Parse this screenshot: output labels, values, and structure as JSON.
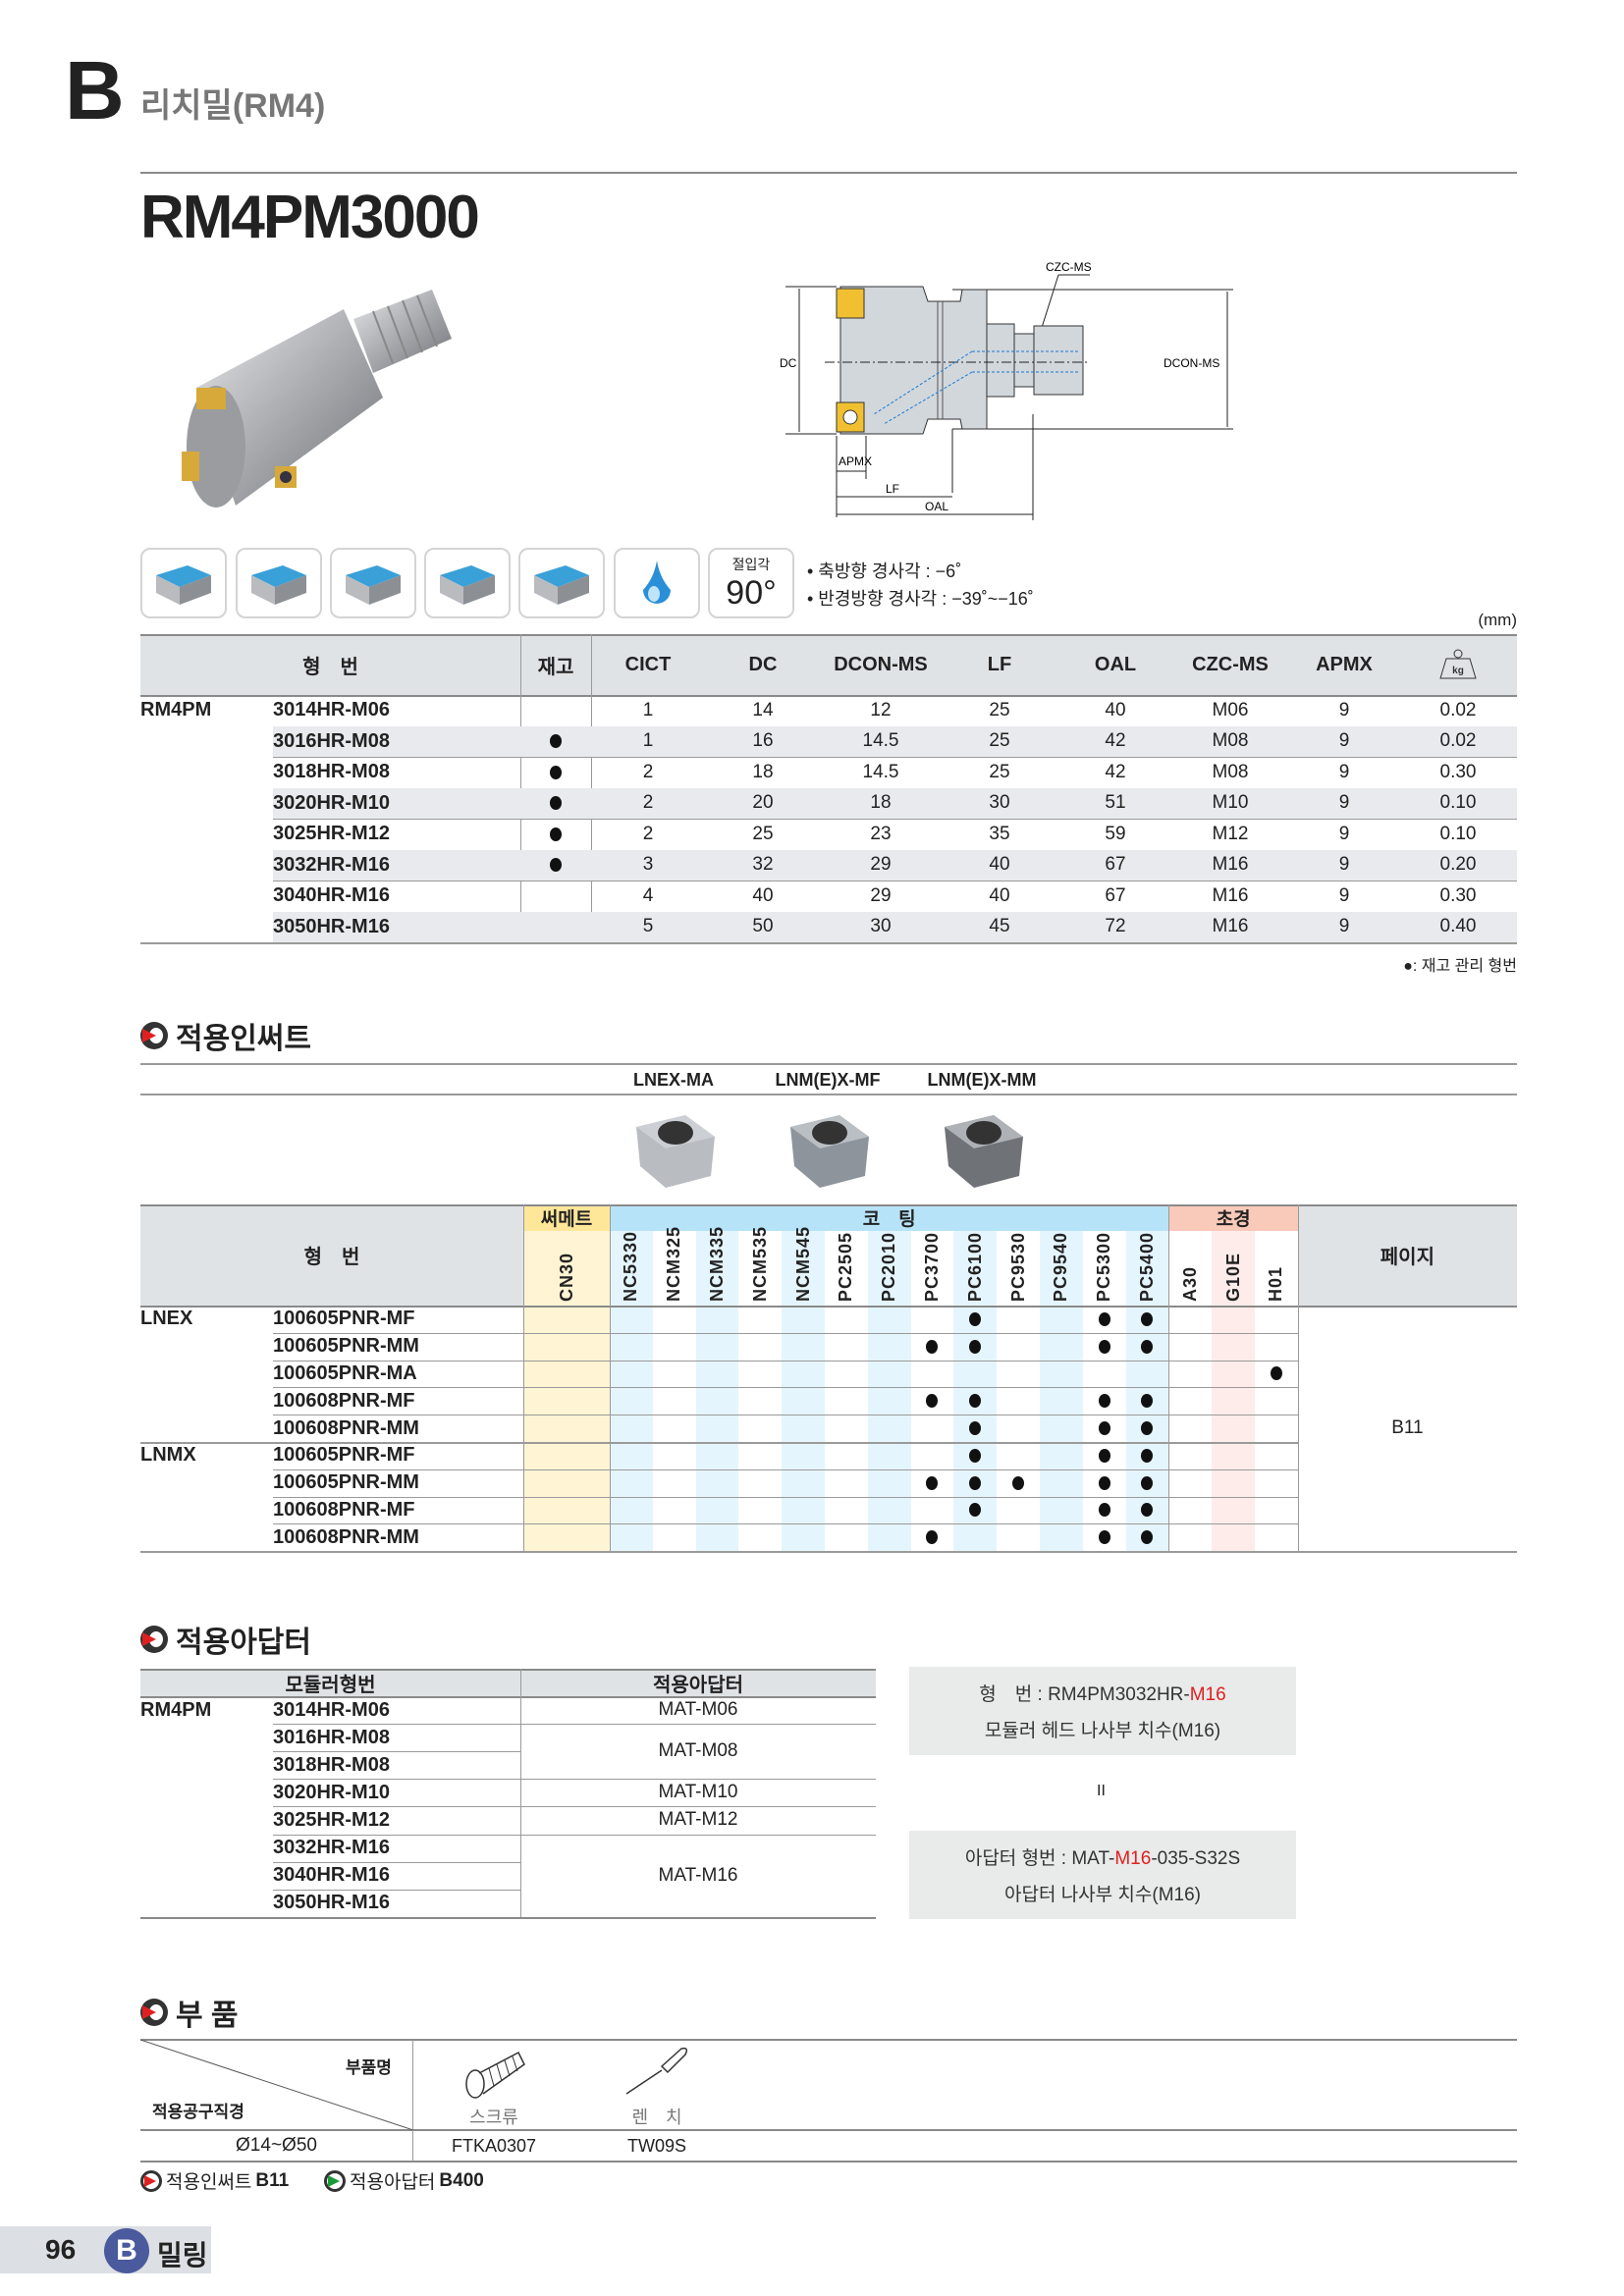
{
  "header": {
    "section_letter": "B",
    "section_title": "리치밀(RM4)"
  },
  "product": {
    "title": "RM4PM3000"
  },
  "diagram": {
    "labels": {
      "czc": "CZC-MS",
      "dc": "DC",
      "dcon": "DCON-MS",
      "apmx": "APMX",
      "lf": "LF",
      "oal": "OAL"
    }
  },
  "features": {
    "icons": [
      "face-milling-icon",
      "shoulder-milling-icon",
      "slotting-icon",
      "pocketing-icon",
      "helical-milling-icon",
      "coolant-drop-icon"
    ],
    "entry_angle_label": "절입각",
    "entry_angle_value": "90°",
    "notes": [
      "• 축방향 경사각 : −6˚",
      "• 반경방향 경사각 : −39˚~−16˚"
    ],
    "unit": "(mm)"
  },
  "spec_table": {
    "headers": [
      "형　번",
      "재고",
      "CICT",
      "DC",
      "DCON-MS",
      "LF",
      "OAL",
      "CZC-MS",
      "APMX",
      "kg"
    ],
    "group": "RM4PM",
    "rows": [
      {
        "code": "3014HR-M06",
        "stock": false,
        "vals": [
          "1",
          "14",
          "12",
          "25",
          "40",
          "M06",
          "9",
          "0.02"
        ]
      },
      {
        "code": "3016HR-M08",
        "stock": true,
        "vals": [
          "1",
          "16",
          "14.5",
          "25",
          "42",
          "M08",
          "9",
          "0.02"
        ]
      },
      {
        "code": "3018HR-M08",
        "stock": true,
        "vals": [
          "2",
          "18",
          "14.5",
          "25",
          "42",
          "M08",
          "9",
          "0.30"
        ]
      },
      {
        "code": "3020HR-M10",
        "stock": true,
        "vals": [
          "2",
          "20",
          "18",
          "30",
          "51",
          "M10",
          "9",
          "0.10"
        ]
      },
      {
        "code": "3025HR-M12",
        "stock": true,
        "vals": [
          "2",
          "25",
          "23",
          "35",
          "59",
          "M12",
          "9",
          "0.10"
        ]
      },
      {
        "code": "3032HR-M16",
        "stock": true,
        "vals": [
          "3",
          "32",
          "29",
          "40",
          "67",
          "M16",
          "9",
          "0.20"
        ]
      },
      {
        "code": "3040HR-M16",
        "stock": false,
        "vals": [
          "4",
          "40",
          "29",
          "40",
          "67",
          "M16",
          "9",
          "0.30"
        ]
      },
      {
        "code": "3050HR-M16",
        "stock": false,
        "vals": [
          "5",
          "50",
          "30",
          "45",
          "72",
          "M16",
          "9",
          "0.40"
        ]
      }
    ],
    "footnote": "●: 재고 관리 형번"
  },
  "inserts": {
    "title": "적용인써트",
    "shapes": [
      "LNEX-MA",
      "LNM(E)X-MF",
      "LNM(E)X-MM"
    ],
    "header_label": "형　번",
    "groups": [
      {
        "name": "써메트",
        "color": "#ffe79a",
        "grades": [
          "CN30"
        ]
      },
      {
        "name": "코　팅",
        "color": "#b7e3f8",
        "grades": [
          "NC5330",
          "NCM325",
          "NCM335",
          "NCM535",
          "NCM545",
          "PC2505",
          "PC2010",
          "PC3700",
          "PC6100",
          "PC9530",
          "PC9540",
          "PC5300",
          "PC5400"
        ]
      },
      {
        "name": "초경",
        "color": "#f9c9b9",
        "grades": [
          "A30",
          "G10E",
          "H01"
        ]
      }
    ],
    "page_label": "페이지",
    "page_value": "B11",
    "rows": [
      {
        "group": "LNEX",
        "code": "100605PNR-MF",
        "dots": [
          "PC6100",
          "PC5300",
          "PC5400"
        ]
      },
      {
        "group": "",
        "code": "100605PNR-MM",
        "dots": [
          "PC3700",
          "PC6100",
          "PC5300",
          "PC5400"
        ]
      },
      {
        "group": "",
        "code": "100605PNR-MA",
        "dots": [
          "H01"
        ]
      },
      {
        "group": "",
        "code": "100608PNR-MF",
        "dots": [
          "PC3700",
          "PC6100",
          "PC5300",
          "PC5400"
        ]
      },
      {
        "group": "",
        "code": "100608PNR-MM",
        "dots": [
          "PC6100",
          "PC5300",
          "PC5400"
        ]
      },
      {
        "group": "LNMX",
        "code": "100605PNR-MF",
        "dots": [
          "PC6100",
          "PC5300",
          "PC5400"
        ]
      },
      {
        "group": "",
        "code": "100605PNR-MM",
        "dots": [
          "PC3700",
          "PC6100",
          "PC9530",
          "PC5300",
          "PC5400"
        ]
      },
      {
        "group": "",
        "code": "100608PNR-MF",
        "dots": [
          "PC6100",
          "PC5300",
          "PC5400"
        ]
      },
      {
        "group": "",
        "code": "100608PNR-MM",
        "dots": [
          "PC3700",
          "PC5300",
          "PC5400"
        ]
      }
    ]
  },
  "adapters": {
    "title": "적용아답터",
    "headers": [
      "모듈러형번",
      "적용아답터"
    ],
    "group": "RM4PM",
    "codes": [
      "3014HR-M06",
      "3016HR-M08",
      "3018HR-M08",
      "3020HR-M10",
      "3025HR-M12",
      "3032HR-M16",
      "3040HR-M16",
      "3050HR-M16"
    ],
    "adapters": [
      {
        "name": "MAT-M06",
        "span": 1
      },
      {
        "name": "MAT-M08",
        "span": 2
      },
      {
        "name": "MAT-M10",
        "span": 1
      },
      {
        "name": "MAT-M12",
        "span": 1
      },
      {
        "name": "MAT-M16",
        "span": 3
      }
    ],
    "example1": {
      "prefix": "형　번 : RM4PM3032HR-",
      "highlight": "M16",
      "line2": "모듈러 헤드 나사부 치수(M16)"
    },
    "equals": "II",
    "example2": {
      "prefix": "아답터 형번 : MAT-",
      "highlight": "M16",
      "suffix": "-035-S32S",
      "line2": "아답터 나사부 치수(M16)"
    }
  },
  "parts": {
    "title": "부 품",
    "corner_top": "부품명",
    "corner_bottom": "적용공구직경",
    "items": [
      {
        "name": "스크류",
        "code": "FTKA0307",
        "icon": "screw-icon"
      },
      {
        "name": "렌　치",
        "code": "TW09S",
        "icon": "wrench-icon"
      }
    ],
    "range": "Ø14~Ø50",
    "refs": [
      {
        "label": "적용인써트",
        "page": "B11",
        "color": "#e02020"
      },
      {
        "label": "적용아답터",
        "page": "B400",
        "color": "#1a9a3a"
      }
    ]
  },
  "footer": {
    "page_number": "96",
    "letter": "B",
    "label": "밀링",
    "accent": "#4a5a9c"
  }
}
